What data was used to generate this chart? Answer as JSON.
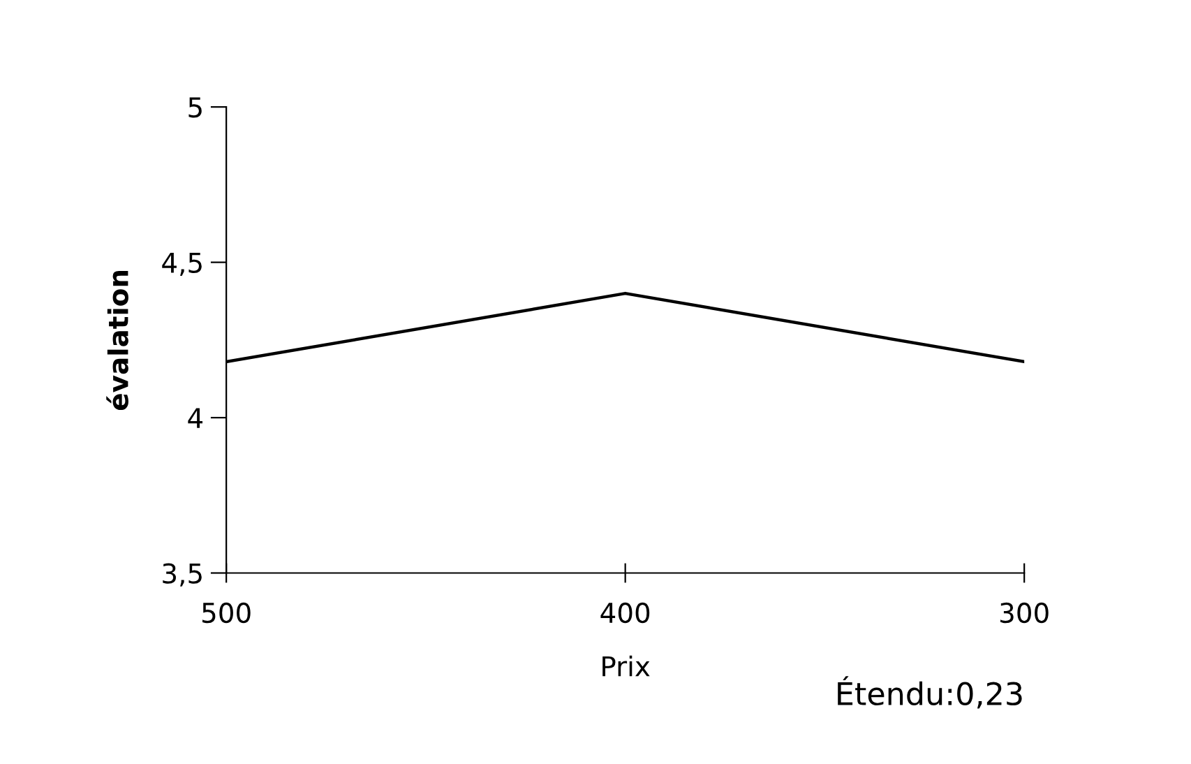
{
  "chart_data": {
    "type": "line",
    "xlabel": "Prix",
    "ylabel": "évalation",
    "categories": [
      "500",
      "400",
      "300"
    ],
    "series": [
      {
        "color": "#000000",
        "values": [
          4.18,
          4.4,
          4.18
        ]
      }
    ],
    "ylim": [
      3.5,
      5
    ],
    "yticks": [
      {
        "value": 3.5,
        "label": "3,5"
      },
      4,
      {
        "value": 4.5,
        "label": "4,5"
      },
      5
    ],
    "grid": false,
    "marker": "none",
    "line_style": "solid",
    "annotations": [
      "Étendu:0,23"
    ]
  }
}
